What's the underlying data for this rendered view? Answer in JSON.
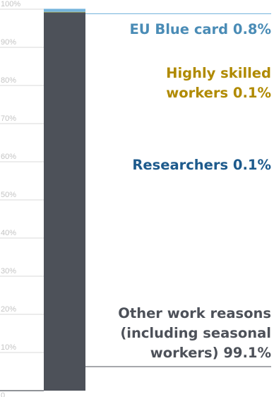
{
  "chart_data": {
    "type": "bar",
    "stacked": true,
    "orientation": "vertical",
    "ylim": [
      0,
      100
    ],
    "yticks": [
      "0",
      "10%",
      "20%",
      "30%",
      "40%",
      "50%",
      "60%",
      "70%",
      "80%",
      "90%",
      "100%"
    ],
    "ytick_values": [
      0,
      10,
      20,
      30,
      40,
      50,
      60,
      70,
      80,
      90,
      100
    ],
    "grid": true,
    "legend": "labels-right",
    "segments": [
      {
        "key": "other",
        "value": 99.1,
        "lines": [
          "Other work reasons",
          "(including seasonal",
          "workers) 99.1%"
        ],
        "color": "#4d5159",
        "text_color": "#4d5159"
      },
      {
        "key": "researchers",
        "value": 0.1,
        "lines": [
          "Researchers 0.1%"
        ],
        "color": "#1d5a8c",
        "text_color": "#1d5a8c"
      },
      {
        "key": "highly-skilled",
        "value": 0.1,
        "lines": [
          "Highly skilled",
          "workers 0.1%"
        ],
        "color": "#d9b000",
        "text_color": "#b08a00"
      },
      {
        "key": "eu-blue-card",
        "value": 0.8,
        "lines": [
          "EU Blue card 0.8%"
        ],
        "color": "#74b4dc",
        "text_color": "#4a8cb6"
      }
    ]
  }
}
